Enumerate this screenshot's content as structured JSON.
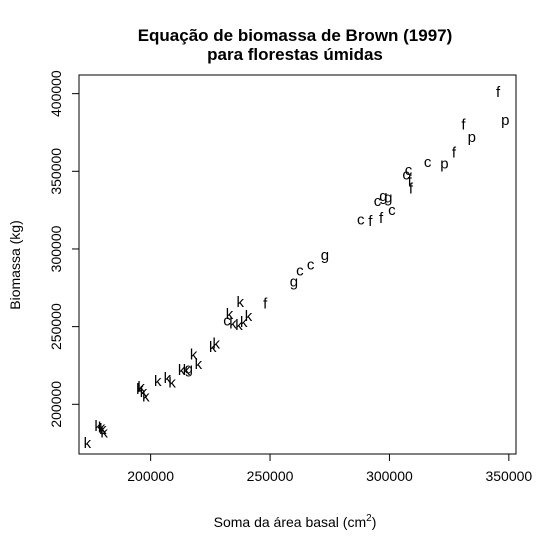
{
  "chart_data": {
    "type": "scatter",
    "title_lines": [
      "Equação de biomassa de Brown (1997)",
      "para florestas úmidas"
    ],
    "xlabel": "Soma da área basal (cm",
    "xlabel_sup": "2",
    "xlabel_close": ")",
    "ylabel": "Biomassa (kg)",
    "xlim": [
      170000,
      353000
    ],
    "ylim": [
      168000,
      412000
    ],
    "x_ticks": [
      {
        "value": 200000,
        "label": "200000"
      },
      {
        "value": 250000,
        "label": "250000"
      },
      {
        "value": 300000,
        "label": "300000"
      },
      {
        "value": 350000,
        "label": "350000"
      }
    ],
    "y_ticks": [
      {
        "value": 200000,
        "label": "200000"
      },
      {
        "value": 250000,
        "label": "250000"
      },
      {
        "value": 300000,
        "label": "300000"
      },
      {
        "value": 350000,
        "label": "350000"
      },
      {
        "value": 400000,
        "label": "400000"
      }
    ],
    "points": [
      {
        "x": 173500,
        "y": 175000,
        "label": "k"
      },
      {
        "x": 178000,
        "y": 186000,
        "label": "k"
      },
      {
        "x": 179500,
        "y": 185000,
        "label": "k"
      },
      {
        "x": 180500,
        "y": 182000,
        "label": "k"
      },
      {
        "x": 180000,
        "y": 184000,
        "label": "k"
      },
      {
        "x": 195500,
        "y": 210000,
        "label": "k"
      },
      {
        "x": 197000,
        "y": 208000,
        "label": "k"
      },
      {
        "x": 198000,
        "y": 205000,
        "label": "k"
      },
      {
        "x": 196000,
        "y": 211000,
        "label": "k"
      },
      {
        "x": 203000,
        "y": 215000,
        "label": "k"
      },
      {
        "x": 207000,
        "y": 217000,
        "label": "k"
      },
      {
        "x": 209000,
        "y": 214000,
        "label": "k"
      },
      {
        "x": 213000,
        "y": 222000,
        "label": "k"
      },
      {
        "x": 215000,
        "y": 222000,
        "label": "k"
      },
      {
        "x": 216000,
        "y": 223000,
        "label": "g"
      },
      {
        "x": 218000,
        "y": 232000,
        "label": "k"
      },
      {
        "x": 220000,
        "y": 226000,
        "label": "k"
      },
      {
        "x": 226000,
        "y": 237000,
        "label": "k"
      },
      {
        "x": 227500,
        "y": 239000,
        "label": "k"
      },
      {
        "x": 232000,
        "y": 254000,
        "label": "c"
      },
      {
        "x": 233000,
        "y": 258000,
        "label": "k"
      },
      {
        "x": 234500,
        "y": 252000,
        "label": "k"
      },
      {
        "x": 237000,
        "y": 251000,
        "label": "k"
      },
      {
        "x": 239000,
        "y": 253000,
        "label": "k"
      },
      {
        "x": 237500,
        "y": 266000,
        "label": "k"
      },
      {
        "x": 241000,
        "y": 257000,
        "label": "k"
      },
      {
        "x": 248000,
        "y": 265000,
        "label": "f"
      },
      {
        "x": 260000,
        "y": 279000,
        "label": "g"
      },
      {
        "x": 262500,
        "y": 286000,
        "label": "c"
      },
      {
        "x": 267000,
        "y": 290000,
        "label": "c"
      },
      {
        "x": 273000,
        "y": 296000,
        "label": "g"
      },
      {
        "x": 288000,
        "y": 319000,
        "label": "c"
      },
      {
        "x": 292000,
        "y": 318000,
        "label": "f"
      },
      {
        "x": 295000,
        "y": 331000,
        "label": "c"
      },
      {
        "x": 297500,
        "y": 334000,
        "label": "g"
      },
      {
        "x": 299500,
        "y": 333000,
        "label": "g"
      },
      {
        "x": 296500,
        "y": 320000,
        "label": "f"
      },
      {
        "x": 301000,
        "y": 325000,
        "label": "c"
      },
      {
        "x": 307000,
        "y": 348000,
        "label": "c"
      },
      {
        "x": 308000,
        "y": 351000,
        "label": "c"
      },
      {
        "x": 308500,
        "y": 344000,
        "label": "f"
      },
      {
        "x": 309000,
        "y": 339000,
        "label": "f"
      },
      {
        "x": 316000,
        "y": 356000,
        "label": "c"
      },
      {
        "x": 323000,
        "y": 355000,
        "label": "p"
      },
      {
        "x": 327000,
        "y": 362000,
        "label": "f"
      },
      {
        "x": 331000,
        "y": 380000,
        "label": "f"
      },
      {
        "x": 334500,
        "y": 372000,
        "label": "p"
      },
      {
        "x": 345500,
        "y": 401000,
        "label": "f"
      },
      {
        "x": 348500,
        "y": 383000,
        "label": "p"
      }
    ]
  }
}
